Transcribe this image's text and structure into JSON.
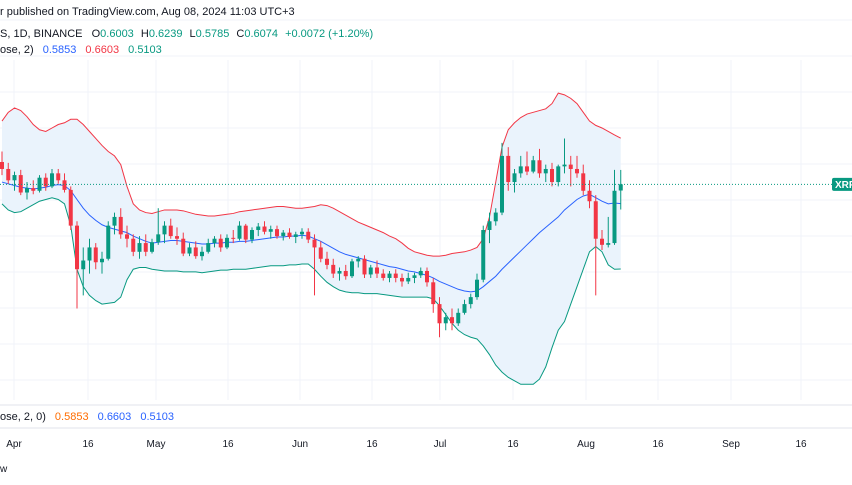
{
  "header": {
    "publisher": "r published on TradingView.com, Aug 08, 2024 11:03 UTC+3",
    "symbol_line": "S, 1D, BINANCE",
    "open_label": "O",
    "open": "0.6003",
    "high_label": "H",
    "high": "0.6239",
    "low_label": "L",
    "low": "0.5785",
    "close_label": "C",
    "close": "0.6074",
    "change": "+0.0072 (+1.20%)",
    "bb_label": "ose, 2)",
    "bb_basis": "0.5853",
    "bb_upper": "0.6603",
    "bb_lower": "0.5103"
  },
  "lower_legend": {
    "label": "ose, 2, 0)",
    "v1": "0.5853",
    "v2": "0.6603",
    "v3": "0.5103"
  },
  "price_tag": "XRP",
  "footer_fragment": "w",
  "colors": {
    "up": "#089981",
    "down": "#f23645",
    "basis": "#2962ff",
    "upper": "#f23645",
    "lower": "#089981",
    "fill": "#eaf3fc",
    "grid": "#f0f3fa",
    "orange": "#ff6d00"
  },
  "chart_data": {
    "type": "candlestick",
    "x_ticks": [
      "Apr",
      "16",
      "May",
      "16",
      "Jun",
      "16",
      "Jul",
      "16",
      "Aug",
      "16",
      "Sep",
      "16"
    ],
    "ylim": [
      0.36,
      0.75
    ],
    "last_close": 0.6074,
    "candles": [
      [
        0.633,
        0.645,
        0.618,
        0.625
      ],
      [
        0.625,
        0.632,
        0.608,
        0.612
      ],
      [
        0.612,
        0.622,
        0.6,
        0.618
      ],
      [
        0.618,
        0.624,
        0.595,
        0.598
      ],
      [
        0.598,
        0.61,
        0.59,
        0.603
      ],
      [
        0.603,
        0.612,
        0.596,
        0.6
      ],
      [
        0.6,
        0.618,
        0.598,
        0.615
      ],
      [
        0.615,
        0.62,
        0.6,
        0.605
      ],
      [
        0.605,
        0.625,
        0.603,
        0.62
      ],
      [
        0.62,
        0.625,
        0.608,
        0.612
      ],
      [
        0.612,
        0.62,
        0.598,
        0.601
      ],
      [
        0.601,
        0.605,
        0.555,
        0.56
      ],
      [
        0.56,
        0.565,
        0.465,
        0.51
      ],
      [
        0.51,
        0.535,
        0.48,
        0.52
      ],
      [
        0.52,
        0.545,
        0.505,
        0.535
      ],
      [
        0.535,
        0.54,
        0.51,
        0.518
      ],
      [
        0.518,
        0.53,
        0.505,
        0.522
      ],
      [
        0.522,
        0.565,
        0.52,
        0.56
      ],
      [
        0.56,
        0.575,
        0.55,
        0.57
      ],
      [
        0.57,
        0.58,
        0.545,
        0.55
      ],
      [
        0.55,
        0.56,
        0.535,
        0.545
      ],
      [
        0.545,
        0.55,
        0.525,
        0.53
      ],
      [
        0.53,
        0.548,
        0.522,
        0.54
      ],
      [
        0.54,
        0.55,
        0.525,
        0.53
      ],
      [
        0.53,
        0.545,
        0.528,
        0.541
      ],
      [
        0.541,
        0.58,
        0.538,
        0.55
      ],
      [
        0.55,
        0.565,
        0.54,
        0.56
      ],
      [
        0.56,
        0.568,
        0.545,
        0.548
      ],
      [
        0.548,
        0.558,
        0.538,
        0.545
      ],
      [
        0.545,
        0.552,
        0.525,
        0.528
      ],
      [
        0.528,
        0.54,
        0.525,
        0.535
      ],
      [
        0.535,
        0.542,
        0.522,
        0.525
      ],
      [
        0.525,
        0.536,
        0.52,
        0.53
      ],
      [
        0.53,
        0.545,
        0.528,
        0.54
      ],
      [
        0.54,
        0.548,
        0.535,
        0.545
      ],
      [
        0.545,
        0.55,
        0.53,
        0.535
      ],
      [
        0.535,
        0.55,
        0.533,
        0.546
      ],
      [
        0.546,
        0.555,
        0.54,
        0.545
      ],
      [
        0.545,
        0.565,
        0.543,
        0.56
      ],
      [
        0.56,
        0.562,
        0.54,
        0.544
      ],
      [
        0.544,
        0.558,
        0.54,
        0.555
      ],
      [
        0.555,
        0.563,
        0.548,
        0.559
      ],
      [
        0.559,
        0.565,
        0.55,
        0.553
      ],
      [
        0.553,
        0.56,
        0.545,
        0.556
      ],
      [
        0.556,
        0.56,
        0.545,
        0.548
      ],
      [
        0.548,
        0.555,
        0.543,
        0.552
      ],
      [
        0.552,
        0.557,
        0.545,
        0.547
      ],
      [
        0.547,
        0.553,
        0.54,
        0.55
      ],
      [
        0.55,
        0.557,
        0.545,
        0.553
      ],
      [
        0.553,
        0.557,
        0.54,
        0.544
      ],
      [
        0.544,
        0.55,
        0.48,
        0.535
      ],
      [
        0.535,
        0.542,
        0.518,
        0.522
      ],
      [
        0.522,
        0.53,
        0.51,
        0.515
      ],
      [
        0.515,
        0.522,
        0.5,
        0.505
      ],
      [
        0.505,
        0.512,
        0.497,
        0.508
      ],
      [
        0.508,
        0.515,
        0.498,
        0.502
      ],
      [
        0.502,
        0.522,
        0.5,
        0.519
      ],
      [
        0.519,
        0.525,
        0.512,
        0.522
      ],
      [
        0.522,
        0.526,
        0.5,
        0.504
      ],
      [
        0.504,
        0.515,
        0.5,
        0.512
      ],
      [
        0.512,
        0.52,
        0.5,
        0.505
      ],
      [
        0.505,
        0.51,
        0.497,
        0.5
      ],
      [
        0.5,
        0.508,
        0.495,
        0.505
      ],
      [
        0.505,
        0.51,
        0.495,
        0.5
      ],
      [
        0.5,
        0.505,
        0.49,
        0.496
      ],
      [
        0.496,
        0.506,
        0.493,
        0.5
      ],
      [
        0.5,
        0.506,
        0.494,
        0.503
      ],
      [
        0.503,
        0.512,
        0.5,
        0.508
      ],
      [
        0.508,
        0.512,
        0.49,
        0.495
      ],
      [
        0.495,
        0.5,
        0.46,
        0.47
      ],
      [
        0.47,
        0.478,
        0.432,
        0.448
      ],
      [
        0.448,
        0.46,
        0.44,
        0.455
      ],
      [
        0.455,
        0.465,
        0.44,
        0.448
      ],
      [
        0.448,
        0.465,
        0.445,
        0.46
      ],
      [
        0.46,
        0.475,
        0.458,
        0.47
      ],
      [
        0.47,
        0.482,
        0.465,
        0.478
      ],
      [
        0.478,
        0.505,
        0.475,
        0.498
      ],
      [
        0.498,
        0.56,
        0.495,
        0.555
      ],
      [
        0.555,
        0.575,
        0.54,
        0.565
      ],
      [
        0.565,
        0.58,
        0.56,
        0.575
      ],
      [
        0.575,
        0.655,
        0.572,
        0.64
      ],
      [
        0.64,
        0.65,
        0.6,
        0.61
      ],
      [
        0.61,
        0.625,
        0.598,
        0.62
      ],
      [
        0.62,
        0.64,
        0.615,
        0.628
      ],
      [
        0.628,
        0.645,
        0.618,
        0.622
      ],
      [
        0.622,
        0.64,
        0.62,
        0.635
      ],
      [
        0.635,
        0.648,
        0.615,
        0.62
      ],
      [
        0.62,
        0.63,
        0.61,
        0.625
      ],
      [
        0.625,
        0.632,
        0.605,
        0.61
      ],
      [
        0.61,
        0.63,
        0.605,
        0.628
      ],
      [
        0.628,
        0.66,
        0.62,
        0.63
      ],
      [
        0.63,
        0.64,
        0.605,
        0.625
      ],
      [
        0.625,
        0.64,
        0.615,
        0.62
      ],
      [
        0.62,
        0.63,
        0.595,
        0.6
      ],
      [
        0.6,
        0.612,
        0.58,
        0.588
      ],
      [
        0.588,
        0.595,
        0.48,
        0.545
      ],
      [
        0.545,
        0.555,
        0.532,
        0.538
      ],
      [
        0.538,
        0.57,
        0.535,
        0.54
      ],
      [
        0.54,
        0.624,
        0.538,
        0.6
      ],
      [
        0.6003,
        0.6239,
        0.5785,
        0.6074
      ]
    ],
    "bb_basis": [
      0.61,
      0.608,
      0.606,
      0.604,
      0.603,
      0.602,
      0.603,
      0.604,
      0.606,
      0.607,
      0.606,
      0.6,
      0.59,
      0.58,
      0.572,
      0.566,
      0.561,
      0.558,
      0.556,
      0.554,
      0.552,
      0.548,
      0.545,
      0.542,
      0.54,
      0.541,
      0.542,
      0.543,
      0.543,
      0.542,
      0.541,
      0.54,
      0.539,
      0.539,
      0.54,
      0.54,
      0.541,
      0.541,
      0.542,
      0.542,
      0.543,
      0.544,
      0.545,
      0.546,
      0.547,
      0.547,
      0.548,
      0.548,
      0.549,
      0.548,
      0.545,
      0.542,
      0.538,
      0.534,
      0.53,
      0.527,
      0.525,
      0.523,
      0.521,
      0.519,
      0.517,
      0.515,
      0.513,
      0.512,
      0.51,
      0.508,
      0.507,
      0.505,
      0.503,
      0.5,
      0.496,
      0.493,
      0.49,
      0.487,
      0.485,
      0.484,
      0.485,
      0.49,
      0.496,
      0.502,
      0.51,
      0.517,
      0.524,
      0.531,
      0.538,
      0.545,
      0.552,
      0.558,
      0.564,
      0.57,
      0.578,
      0.584,
      0.59,
      0.594,
      0.596,
      0.592,
      0.588,
      0.585,
      0.586,
      0.5853
    ],
    "bb_upper": [
      0.68,
      0.69,
      0.695,
      0.692,
      0.685,
      0.676,
      0.67,
      0.668,
      0.672,
      0.676,
      0.678,
      0.682,
      0.682,
      0.676,
      0.668,
      0.66,
      0.652,
      0.645,
      0.64,
      0.63,
      0.605,
      0.585,
      0.578,
      0.575,
      0.574,
      0.576,
      0.578,
      0.578,
      0.578,
      0.577,
      0.575,
      0.573,
      0.572,
      0.571,
      0.571,
      0.572,
      0.573,
      0.574,
      0.576,
      0.577,
      0.578,
      0.579,
      0.58,
      0.581,
      0.582,
      0.582,
      0.581,
      0.58,
      0.58,
      0.581,
      0.582,
      0.584,
      0.583,
      0.58,
      0.576,
      0.572,
      0.568,
      0.564,
      0.561,
      0.558,
      0.555,
      0.552,
      0.548,
      0.545,
      0.54,
      0.534,
      0.53,
      0.528,
      0.526,
      0.525,
      0.525,
      0.526,
      0.528,
      0.529,
      0.53,
      0.532,
      0.535,
      0.545,
      0.57,
      0.61,
      0.65,
      0.67,
      0.678,
      0.684,
      0.688,
      0.69,
      0.692,
      0.694,
      0.7,
      0.712,
      0.71,
      0.706,
      0.7,
      0.69,
      0.68,
      0.675,
      0.672,
      0.668,
      0.664,
      0.6603
    ],
    "bb_lower": [
      0.585,
      0.578,
      0.575,
      0.576,
      0.58,
      0.584,
      0.588,
      0.59,
      0.592,
      0.59,
      0.585,
      0.56,
      0.51,
      0.49,
      0.48,
      0.474,
      0.47,
      0.471,
      0.472,
      0.478,
      0.498,
      0.51,
      0.512,
      0.512,
      0.51,
      0.509,
      0.508,
      0.508,
      0.508,
      0.507,
      0.507,
      0.507,
      0.506,
      0.507,
      0.508,
      0.509,
      0.509,
      0.51,
      0.51,
      0.51,
      0.511,
      0.512,
      0.513,
      0.514,
      0.514,
      0.514,
      0.515,
      0.515,
      0.516,
      0.516,
      0.51,
      0.502,
      0.495,
      0.49,
      0.486,
      0.484,
      0.483,
      0.483,
      0.482,
      0.482,
      0.482,
      0.481,
      0.48,
      0.479,
      0.478,
      0.478,
      0.478,
      0.478,
      0.478,
      0.476,
      0.468,
      0.458,
      0.448,
      0.44,
      0.435,
      0.432,
      0.43,
      0.422,
      0.412,
      0.4,
      0.392,
      0.386,
      0.382,
      0.378,
      0.378,
      0.378,
      0.384,
      0.398,
      0.42,
      0.44,
      0.45,
      0.47,
      0.49,
      0.51,
      0.53,
      0.536,
      0.53,
      0.515,
      0.51,
      0.5103
    ]
  }
}
